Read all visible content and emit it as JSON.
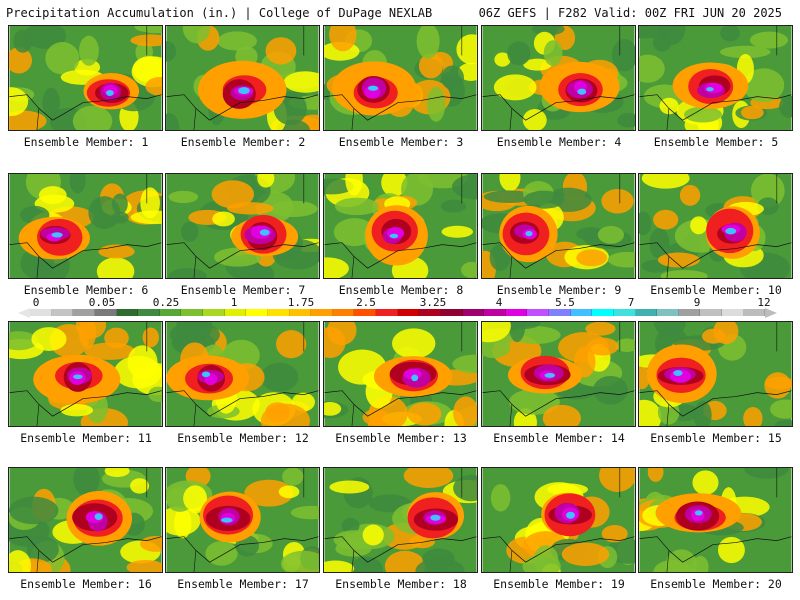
{
  "header": {
    "title": "Precipitation Accumulation (in.) | College of DuPage NEXLAB",
    "run_info": "06Z GEFS | F282 Valid: 00Z FRI JUN 20 2025"
  },
  "legend": {
    "labels": [
      "0",
      "0.05",
      "0.25",
      "1",
      "1.75",
      "2.5",
      "3.25",
      "4",
      "5.5",
      "7",
      "9",
      "12"
    ],
    "colors": [
      "#e0e0e0",
      "#c4c4c4",
      "#a0a0a0",
      "#7a7a7a",
      "#2f6b2f",
      "#3e8a3e",
      "#58a838",
      "#7cc030",
      "#a8d820",
      "#e0f000",
      "#ffff00",
      "#ffe000",
      "#ffc000",
      "#ffa000",
      "#ff8000",
      "#ff5000",
      "#f02020",
      "#d00000",
      "#b00020",
      "#900030",
      "#a00070",
      "#c000a0",
      "#e000e0",
      "#c050ff",
      "#8080ff",
      "#40c0ff",
      "#00ffff",
      "#40e0e0",
      "#40b0b0",
      "#80c0c0",
      "#a0a0a0",
      "#c0c0c0",
      "#dcdcdc",
      "#bcbcbc"
    ]
  },
  "members": [
    {
      "label": "Ensemble Member: 1"
    },
    {
      "label": "Ensemble Member: 2"
    },
    {
      "label": "Ensemble Member: 3"
    },
    {
      "label": "Ensemble Member: 4"
    },
    {
      "label": "Ensemble Member: 5"
    },
    {
      "label": "Ensemble Member: 6"
    },
    {
      "label": "Ensemble Member: 7"
    },
    {
      "label": "Ensemble Member: 8"
    },
    {
      "label": "Ensemble Member: 9"
    },
    {
      "label": "Ensemble Member: 10"
    },
    {
      "label": "Ensemble Member: 11"
    },
    {
      "label": "Ensemble Member: 12"
    },
    {
      "label": "Ensemble Member: 13"
    },
    {
      "label": "Ensemble Member: 14"
    },
    {
      "label": "Ensemble Member: 15"
    },
    {
      "label": "Ensemble Member: 16"
    },
    {
      "label": "Ensemble Member: 17"
    },
    {
      "label": "Ensemble Member: 18"
    },
    {
      "label": "Ensemble Member: 19"
    },
    {
      "label": "Ensemble Member: 20"
    }
  ]
}
